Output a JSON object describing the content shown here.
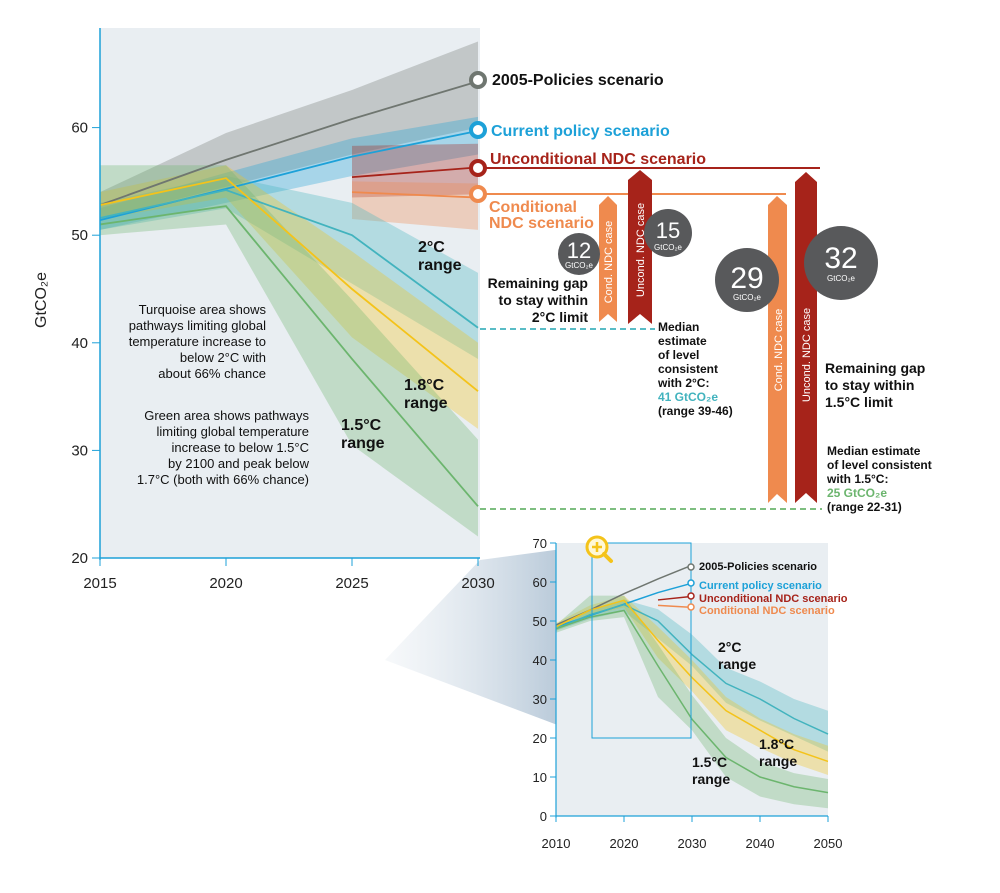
{
  "chart_data": [
    {
      "type": "line",
      "ylabel": "GtCO₂e",
      "xlim": [
        2015,
        2030
      ],
      "ylim": [
        20,
        70
      ],
      "x_ticks": [
        "2015",
        "2020",
        "2025",
        "2030"
      ],
      "y_ticks": [
        "20",
        "30",
        "40",
        "50",
        "60"
      ],
      "series": [
        {
          "name": "2005-Policies scenario",
          "color": "#6f7670",
          "x": [
            2015,
            2020,
            2025,
            2030
          ],
          "values": [
            52.8,
            57.0,
            60.8,
            64.3
          ],
          "band": {
            "x": [
              2015,
              2020,
              2025,
              2030
            ],
            "low": [
              51.5,
              54.5,
              57.5,
              60.0
            ],
            "high": [
              54.0,
              59.5,
              63.5,
              68.0
            ]
          }
        },
        {
          "name": "Current policy scenario",
          "color": "#1da1d8",
          "x": [
            2015,
            2020,
            2025,
            2030
          ],
          "values": [
            51.4,
            54.3,
            57.3,
            59.7
          ],
          "band": {
            "x": [
              2015,
              2020,
              2025,
              2030
            ],
            "low": [
              50.5,
              53.0,
              55.5,
              57.5
            ],
            "high": [
              52.5,
              55.8,
              59.0,
              61.0
            ]
          }
        },
        {
          "name": "Unconditional NDC scenario",
          "color": "#a6231a",
          "x": [
            2025,
            2030
          ],
          "values": [
            55.4,
            56.3
          ],
          "band": {
            "x": [
              2025,
              2030
            ],
            "low": [
              53.5,
              53.8
            ],
            "high": [
              58.3,
              58.5
            ]
          }
        },
        {
          "name": "Conditional NDC scenario",
          "color": "#ef8a4e",
          "x": [
            2025,
            2030
          ],
          "values": [
            54.0,
            53.5
          ],
          "band": {
            "x": [
              2025,
              2030
            ],
            "low": [
              51.5,
              50.5
            ],
            "high": [
              55.0,
              54.8
            ]
          }
        },
        {
          "name": "2°C range",
          "color": "#42b3be",
          "x": [
            2015,
            2020,
            2025,
            2030
          ],
          "values": [
            51.6,
            54.2,
            50.0,
            41.4
          ],
          "band": {
            "x": [
              2015,
              2020,
              2025,
              2030
            ],
            "low": [
              50.5,
              52.5,
              45.5,
              38.5
            ],
            "high": [
              53.0,
              55.5,
              53.0,
              46.5
            ]
          }
        },
        {
          "name": "1.8°C range",
          "color": "#f4c31a",
          "x": [
            2015,
            2020,
            2025,
            2030
          ],
          "values": [
            52.8,
            55.3,
            45.0,
            35.5
          ],
          "band": {
            "x": [
              2015,
              2020,
              2025,
              2030
            ],
            "low": [
              51.5,
              53.5,
              40.5,
              32.0
            ],
            "high": [
              54.0,
              56.5,
              48.5,
              40.0
            ]
          }
        },
        {
          "name": "1.5°C range",
          "color": "#6cb56e",
          "x": [
            2015,
            2020,
            2025,
            2030
          ],
          "values": [
            51.0,
            52.7,
            38.5,
            24.8
          ],
          "band": {
            "x": [
              2015,
              2020,
              2025,
              2030
            ],
            "low": [
              50.0,
              51.0,
              30.5,
              22.0
            ],
            "high": [
              56.5,
              56.5,
              44.0,
              31.0
            ]
          }
        }
      ]
    },
    {
      "type": "line",
      "xlim": [
        2010,
        2050
      ],
      "ylim": [
        0,
        70
      ],
      "x_ticks": [
        "2010",
        "2020",
        "2030",
        "2040",
        "2050"
      ],
      "y_ticks": [
        "0",
        "10",
        "20",
        "30",
        "40",
        "50",
        "60",
        "70"
      ],
      "series": [
        {
          "name": "2005-Policies scenario",
          "color": "#6f7670",
          "x": [
            2010,
            2015,
            2020,
            2025,
            2030
          ],
          "values": [
            49.0,
            52.8,
            57.0,
            60.8,
            64.3
          ]
        },
        {
          "name": "Current policy scenario",
          "color": "#1da1d8",
          "x": [
            2010,
            2015,
            2020,
            2025,
            2030
          ],
          "values": [
            48.5,
            51.4,
            54.3,
            57.3,
            59.7
          ]
        },
        {
          "name": "Unconditional NDC scenario",
          "color": "#a6231a",
          "x": [
            2025,
            2030
          ],
          "values": [
            55.4,
            56.3
          ]
        },
        {
          "name": "Conditional NDC scenario",
          "color": "#ef8a4e",
          "x": [
            2025,
            2030
          ],
          "values": [
            54.0,
            53.5
          ]
        },
        {
          "name": "2°C range",
          "color": "#42b3be",
          "x": [
            2010,
            2015,
            2020,
            2025,
            2030,
            2035,
            2040,
            2045,
            2050
          ],
          "values": [
            48.0,
            51.6,
            54.2,
            50.0,
            41.4,
            34.0,
            30.0,
            25.0,
            21.0
          ],
          "band": {
            "x": [
              2010,
              2015,
              2020,
              2025,
              2030,
              2035,
              2040,
              2045,
              2050
            ],
            "low": [
              47.5,
              50.5,
              52.5,
              45.5,
              38.5,
              29.0,
              24.5,
              20.5,
              16.5
            ],
            "high": [
              49.0,
              53.0,
              55.5,
              53.0,
              46.5,
              38.0,
              34.5,
              30.0,
              27.0
            ]
          }
        },
        {
          "name": "1.8°C range",
          "color": "#f4c31a",
          "x": [
            2010,
            2015,
            2020,
            2025,
            2030,
            2035,
            2040,
            2045,
            2050
          ],
          "values": [
            48.5,
            52.8,
            55.3,
            45.0,
            35.5,
            27.0,
            22.0,
            17.0,
            14.0
          ],
          "band": {
            "x": [
              2010,
              2015,
              2020,
              2025,
              2030,
              2035,
              2040,
              2045,
              2050
            ],
            "low": [
              47.5,
              51.5,
              53.5,
              40.5,
              32.0,
              22.0,
              17.5,
              13.5,
              10.5
            ],
            "high": [
              49.5,
              54.0,
              56.5,
              48.5,
              40.0,
              30.5,
              25.0,
              21.0,
              18.0
            ]
          }
        },
        {
          "name": "1.5°C range",
          "color": "#6cb56e",
          "x": [
            2010,
            2015,
            2020,
            2025,
            2030,
            2035,
            2040,
            2045,
            2050
          ],
          "values": [
            48.0,
            51.0,
            52.7,
            38.5,
            24.8,
            15.0,
            10.0,
            7.5,
            6.0
          ],
          "band": {
            "x": [
              2010,
              2015,
              2020,
              2025,
              2030,
              2035,
              2040,
              2045,
              2050
            ],
            "low": [
              47.0,
              50.0,
              51.0,
              30.5,
              22.0,
              10.0,
              5.0,
              3.0,
              2.0
            ],
            "high": [
              49.0,
              56.5,
              56.5,
              44.0,
              31.0,
              20.0,
              14.0,
              11.0,
              9.5
            ]
          }
        }
      ]
    }
  ],
  "main": {
    "scenario_labels": {
      "policies_2005": "2005-Policies scenario",
      "current_policy": "Current policy scenario",
      "unconditional_ndc": "Unconditional NDC scenario",
      "conditional_ndc_line1": "Conditional",
      "conditional_ndc_line2": "NDC scenario"
    },
    "range_labels": {
      "two_c_line1": "2°C",
      "two_c_line2": "range",
      "one_eight_line1": "1.8°C",
      "one_eight_line2": "range",
      "one_five_line1": "1.5°C",
      "one_five_line2": "range"
    },
    "notes": {
      "turquoise": [
        "Turquoise area shows",
        "pathways limiting global",
        "temperature increase to",
        "below 2°C with",
        "about 66% chance"
      ],
      "green": [
        "Green area shows pathways",
        "limiting global temperature",
        "increase to below 1.5°C",
        "by 2100 and peak below",
        "1.7°C (both with 66% chance)"
      ]
    }
  },
  "gap": {
    "two_c": {
      "conditional_value": "12",
      "unconditional_value": "15",
      "unit": "GtCO₂e",
      "cond_bar_label": "Cond. NDC case",
      "uncond_bar_label": "Uncond. NDC case",
      "title_lines": [
        "Remaining gap",
        "to stay within",
        "2°C limit"
      ],
      "median_lines": [
        "Median",
        "estimate",
        "of level",
        "consistent",
        "with 2°C:"
      ],
      "median_value": "41 GtCO₂e",
      "median_range": "(range 39-46)"
    },
    "one_five": {
      "conditional_value": "29",
      "unconditional_value": "32",
      "unit": "GtCO₂e",
      "cond_bar_label": "Cond. NDC case",
      "uncond_bar_label": "Uncond. NDC case",
      "title_lines": [
        "Remaining gap",
        "to stay within",
        "1.5°C limit"
      ],
      "median_lines": [
        "Median estimate",
        "of level consistent",
        "with 1.5°C:"
      ],
      "median_value": "25 GtCO₂e",
      "median_range": "(range 22-31)"
    }
  },
  "inset": {
    "scenario_labels": {
      "policies_2005": "2005-Policies scenario",
      "current_policy": "Current policy scenario",
      "unconditional_ndc": "Unconditional NDC scenario",
      "conditional_ndc": "Conditional NDC scenario"
    },
    "range_labels": {
      "two_c_line1": "2°C",
      "two_c_line2": "range",
      "one_eight_line1": "1.8°C",
      "one_eight_line2": "range",
      "one_five_line1": "1.5°C",
      "one_five_line2": "range"
    },
    "zoom_icon": "magnifier-plus-icon"
  },
  "colors": {
    "axis": "#1da1d8",
    "panel": "#e9eef2",
    "gap_circle": "#58595b",
    "cond_bar": "#ef8a4e",
    "uncond_bar": "#a6231a",
    "two_c_dash": "#42b3be",
    "one_five_dash": "#6cb56e",
    "zoom": "#f4c31a"
  }
}
